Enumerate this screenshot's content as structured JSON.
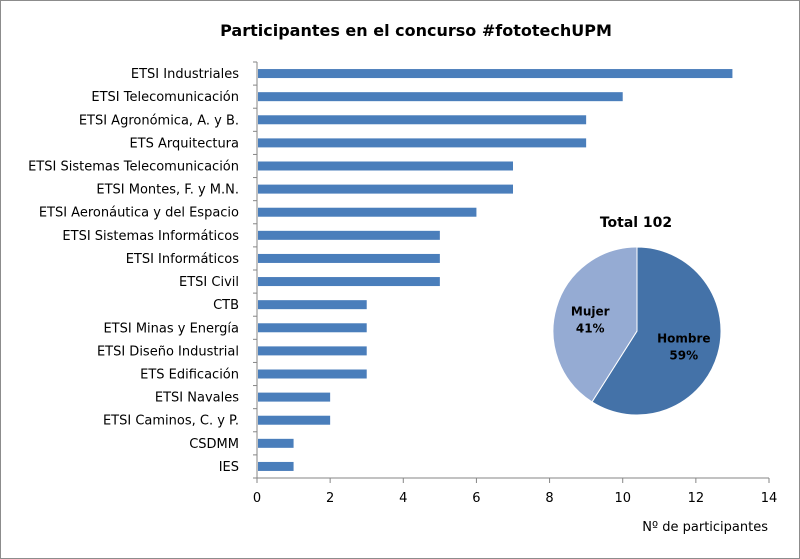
{
  "chart_data": [
    {
      "type": "bar",
      "orientation": "horizontal",
      "title": "Participantes en el concurso #fototechUPM",
      "xlabel": "Nº de participantes",
      "ylabel": "",
      "xlim": [
        0,
        14
      ],
      "xticks": [
        0,
        2,
        4,
        6,
        8,
        10,
        12,
        14
      ],
      "grid": false,
      "bar_color": "#4a7ebb",
      "categories": [
        "ETSI Industriales",
        "ETSI Telecomunicación",
        "ETSI Agronómica, A. y B.",
        "ETS Arquitectura",
        "ETSI Sistemas Telecomunicación",
        "ETSI Montes, F. y M.N.",
        "ETSI Aeronáutica y del Espacio",
        "ETSI Sistemas Informáticos",
        "ETSI Informáticos",
        "ETSI Civil",
        "CTB",
        "ETSI Minas y Energía",
        "ETSI Diseño Industrial",
        "ETS Edificación",
        "ETSI Navales",
        "ETSI Caminos, C. y P.",
        "CSDMM",
        "IES"
      ],
      "values": [
        13,
        10,
        9,
        9,
        7,
        7,
        6,
        5,
        5,
        5,
        3,
        3,
        3,
        3,
        2,
        2,
        1,
        1
      ]
    },
    {
      "type": "pie",
      "title": "Total 102",
      "slices": [
        {
          "label": "Hombre",
          "percent_label": "59%",
          "value": 59,
          "color": "#4472a8"
        },
        {
          "label": "Mujer",
          "percent_label": "41%",
          "value": 41,
          "color": "#95abd3"
        }
      ]
    }
  ]
}
